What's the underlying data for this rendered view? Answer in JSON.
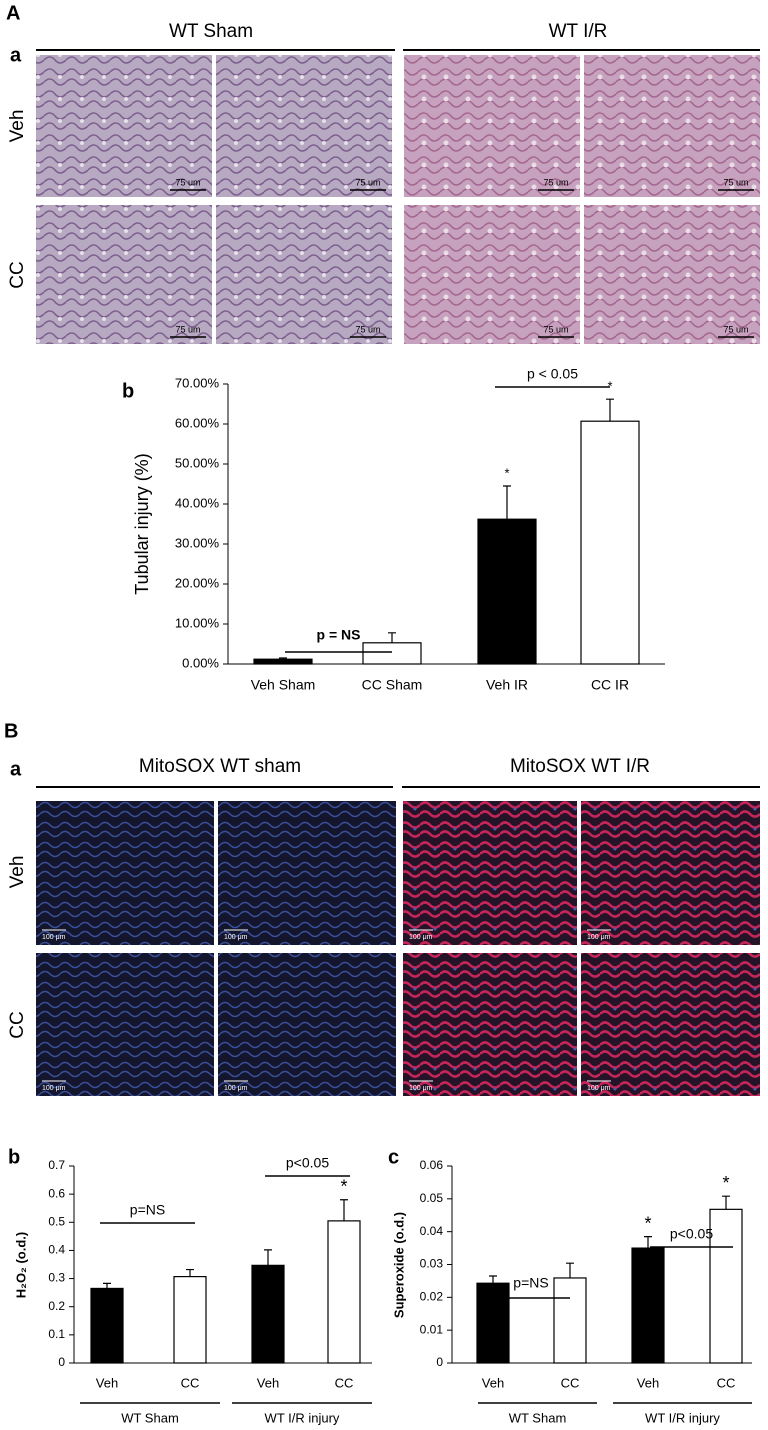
{
  "panel_A": {
    "label": "A",
    "sub_label": "a",
    "groups": [
      "WT Sham",
      "WT I/R"
    ],
    "rows": [
      "Veh",
      "CC"
    ],
    "scale_labels": [
      "75 um",
      "75 um",
      "75 um",
      "75 um",
      "75 um",
      "75 um",
      "75 um",
      "75 um"
    ]
  },
  "panel_B": {
    "label": "B",
    "sub_label": "a",
    "groups": [
      "MitoSOX WT sham",
      "MitoSOX WT I/R"
    ],
    "rows": [
      "Veh",
      "CC"
    ],
    "scale_labels": [
      "100 μm",
      "100 μm",
      "100 μm",
      "100 μm",
      "100 μm",
      "100 μm",
      "100 μm",
      "100 μm"
    ]
  },
  "chart_data": [
    {
      "type": "bar",
      "panel_label": "b",
      "ylabel": "Tubular injury (%)",
      "categories": [
        "Veh Sham",
        "CC Sham",
        "Veh IR",
        "CC IR"
      ],
      "values": [
        1.2,
        5.3,
        36.2,
        60.7
      ],
      "errors": [
        0.3,
        2.5,
        8.3,
        5.5
      ],
      "colors": [
        "#000000",
        "#ffffff",
        "#000000",
        "#ffffff"
      ],
      "ylim": [
        0,
        70
      ],
      "yticks": [
        {
          "value": 0,
          "label": "0.00%"
        },
        {
          "value": 10,
          "label": "10.00%"
        },
        {
          "value": 20,
          "label": "20.00%"
        },
        {
          "value": 30,
          "label": "30.00%"
        },
        {
          "value": 40,
          "label": "40.00%"
        },
        {
          "value": 50,
          "label": "50.00%"
        },
        {
          "value": 60,
          "label": "60.00%"
        },
        {
          "value": 70,
          "label": "70.00%"
        }
      ],
      "significance": [
        null,
        null,
        "*",
        "*"
      ],
      "comparisons": [
        "p = NS",
        "p < 0.05"
      ]
    },
    {
      "type": "bar",
      "panel_label": "b",
      "ylabel": "H₂O₂ (o.d.)",
      "categories": [
        "Veh",
        "CC",
        "Veh",
        "CC"
      ],
      "group_labels": [
        "WT Sham",
        "WT I/R injury"
      ],
      "values": [
        0.265,
        0.307,
        0.347,
        0.505
      ],
      "errors": [
        0.018,
        0.025,
        0.055,
        0.075
      ],
      "colors": [
        "#000000",
        "#ffffff",
        "#000000",
        "#ffffff"
      ],
      "ylim": [
        0,
        0.7
      ],
      "yticks": [
        0,
        0.1,
        0.2,
        0.3,
        0.4,
        0.5,
        0.6,
        0.7
      ],
      "significance": [
        null,
        null,
        null,
        "*"
      ],
      "comparisons": [
        "p=NS",
        "p<0.05"
      ]
    },
    {
      "type": "bar",
      "panel_label": "c",
      "ylabel": "Superoxide (o.d.)",
      "categories": [
        "Veh",
        "CC",
        "Veh",
        "CC"
      ],
      "group_labels": [
        "WT Sham",
        "WT I/R injury"
      ],
      "values": [
        0.0243,
        0.0259,
        0.035,
        0.0468
      ],
      "errors": [
        0.0022,
        0.0045,
        0.0035,
        0.004
      ],
      "colors": [
        "#000000",
        "#ffffff",
        "#000000",
        "#ffffff"
      ],
      "ylim": [
        0,
        0.06
      ],
      "yticks": [
        0,
        0.01,
        0.02,
        0.03,
        0.04,
        0.05,
        0.06
      ],
      "significance": [
        null,
        null,
        "*",
        "*"
      ],
      "comparisons": [
        "p=NS",
        "p<0.05"
      ]
    }
  ]
}
